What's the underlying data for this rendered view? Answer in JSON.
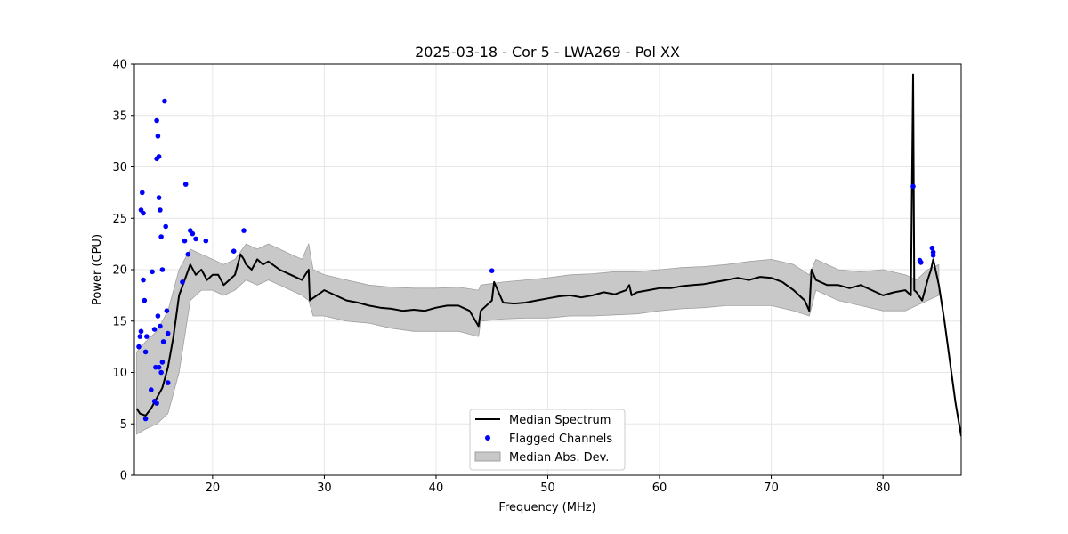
{
  "chart_data": {
    "type": "line",
    "title": "2025-03-18 - Cor 5 - LWA269 - Pol XX",
    "xlabel": "Frequency (MHz)",
    "ylabel": "Power (CPU)",
    "xlim": [
      13,
      87
    ],
    "ylim": [
      0,
      40
    ],
    "xticks": [
      20,
      30,
      40,
      50,
      60,
      70,
      80
    ],
    "yticks": [
      0,
      5,
      10,
      15,
      20,
      25,
      30,
      35,
      40
    ],
    "grid": true,
    "legend": {
      "placement": "lower-center",
      "entries": [
        "Median Spectrum",
        "Flagged Channels",
        "Median Abs. Dev."
      ]
    },
    "colors": {
      "median": "#000000",
      "flagged": "#0000ff",
      "mad_fill": "#c8c8c8",
      "mad_edge": "#a0a0a0"
    },
    "series": [
      {
        "name": "Median Spectrum",
        "x": [
          13.2,
          13.5,
          14.0,
          14.5,
          15.0,
          15.5,
          16.0,
          16.5,
          17.0,
          17.5,
          18.0,
          18.5,
          19.0,
          19.5,
          20.0,
          20.5,
          21.0,
          21.5,
          22.0,
          22.5,
          22.8,
          23.0,
          23.5,
          24.0,
          24.5,
          25.0,
          26.0,
          27.0,
          28.0,
          28.6,
          28.7,
          30.0,
          31.0,
          32.0,
          33.0,
          34.0,
          35.0,
          36.0,
          37.0,
          38.0,
          39.0,
          40.0,
          41.0,
          42.0,
          43.0,
          43.8,
          44.0,
          45.0,
          45.2,
          46.0,
          47.0,
          48.0,
          49.0,
          50.0,
          51.0,
          52.0,
          53.0,
          54.0,
          55.0,
          56.0,
          57.0,
          57.3,
          57.5,
          58.0,
          59.0,
          60.0,
          61.0,
          62.0,
          63.0,
          64.0,
          65.0,
          66.0,
          67.0,
          68.0,
          69.0,
          70.0,
          71.0,
          72.0,
          73.0,
          73.4,
          73.6,
          74.0,
          75.0,
          76.0,
          77.0,
          78.0,
          79.0,
          80.0,
          81.0,
          82.0,
          82.5,
          82.7,
          82.8,
          83.0,
          83.5,
          84.0,
          84.3,
          84.5,
          85.0,
          85.5,
          86.0,
          86.5,
          87.0
        ],
        "values": [
          6.5,
          6.0,
          5.8,
          6.5,
          7.5,
          8.5,
          10.5,
          13.5,
          17.5,
          19.0,
          20.5,
          19.5,
          20.0,
          19.0,
          19.5,
          19.5,
          18.5,
          19.0,
          19.5,
          21.5,
          21.0,
          20.5,
          20.0,
          21.0,
          20.5,
          20.8,
          20.0,
          19.5,
          19.0,
          20.0,
          17.0,
          18.0,
          17.5,
          17.0,
          16.8,
          16.5,
          16.3,
          16.2,
          16.0,
          16.1,
          16.0,
          16.3,
          16.5,
          16.5,
          16.0,
          14.5,
          16.0,
          17.0,
          18.8,
          16.8,
          16.7,
          16.8,
          17.0,
          17.2,
          17.4,
          17.5,
          17.3,
          17.5,
          17.8,
          17.6,
          18.0,
          18.5,
          17.5,
          17.8,
          18.0,
          18.2,
          18.2,
          18.4,
          18.5,
          18.6,
          18.8,
          19.0,
          19.2,
          19.0,
          19.3,
          19.2,
          18.8,
          18.0,
          17.0,
          16.0,
          20.0,
          19.0,
          18.5,
          18.5,
          18.2,
          18.5,
          18.0,
          17.5,
          17.8,
          18.0,
          17.5,
          39.0,
          18.0,
          17.8,
          17.0,
          19.0,
          20.0,
          21.0,
          18.5,
          15.0,
          11.0,
          7.0,
          3.8
        ]
      },
      {
        "name": "Median Abs. Dev.",
        "x": [
          13.2,
          14.0,
          15.0,
          16.0,
          17.0,
          18.0,
          19.0,
          20.0,
          21.0,
          22.0,
          23.0,
          24.0,
          25.0,
          26.0,
          27.0,
          28.0,
          28.6,
          29.0,
          30.0,
          32.0,
          34.0,
          36.0,
          38.0,
          40.0,
          42.0,
          43.8,
          44.0,
          46.0,
          48.0,
          50.0,
          52.0,
          54.0,
          56.0,
          58.0,
          60.0,
          62.0,
          64.0,
          66.0,
          68.0,
          70.0,
          72.0,
          73.4,
          74.0,
          76.0,
          78.0,
          80.0,
          82.0,
          83.0,
          84.0,
          85.0
        ],
        "upper": [
          12.0,
          13.0,
          14.0,
          16.0,
          20.0,
          22.0,
          21.5,
          21.0,
          20.5,
          21.0,
          22.5,
          22.0,
          22.5,
          22.0,
          21.5,
          21.0,
          22.5,
          20.0,
          19.5,
          19.0,
          18.5,
          18.3,
          18.2,
          18.2,
          18.3,
          18.0,
          18.5,
          18.8,
          19.0,
          19.2,
          19.5,
          19.6,
          19.8,
          19.8,
          20.0,
          20.2,
          20.3,
          20.5,
          20.8,
          21.0,
          20.5,
          19.5,
          21.0,
          20.0,
          19.8,
          20.0,
          19.5,
          19.0,
          20.0,
          20.5
        ],
        "lower": [
          4.0,
          4.5,
          5.0,
          6.0,
          10.0,
          17.0,
          18.0,
          18.0,
          17.5,
          18.0,
          19.0,
          18.5,
          19.0,
          18.5,
          18.0,
          17.5,
          17.0,
          15.5,
          15.5,
          15.0,
          14.8,
          14.3,
          14.0,
          14.0,
          14.0,
          13.5,
          15.0,
          15.2,
          15.3,
          15.3,
          15.5,
          15.5,
          15.6,
          15.7,
          16.0,
          16.2,
          16.3,
          16.5,
          16.5,
          16.5,
          16.0,
          15.5,
          18.0,
          17.0,
          16.5,
          16.0,
          16.0,
          16.5,
          17.0,
          17.5
        ]
      },
      {
        "name": "Flagged Channels",
        "x": [
          13.4,
          13.5,
          13.6,
          13.6,
          13.7,
          13.8,
          13.8,
          13.9,
          14.0,
          14.1,
          14.0,
          14.5,
          14.6,
          14.8,
          14.9,
          15.0,
          15.0,
          15.1,
          15.2,
          15.2,
          15.3,
          15.4,
          15.5,
          15.6,
          15.7,
          15.8,
          15.9,
          16.0,
          16.0,
          15.1,
          15.3,
          15.5,
          15.2,
          15.4,
          14.8,
          15.0,
          17.3,
          17.5,
          17.6,
          17.8,
          18.0,
          18.2,
          18.5,
          19.4,
          21.9,
          22.8,
          45.0,
          82.7,
          83.3,
          83.4,
          84.4,
          84.5,
          84.5
        ],
        "values": [
          12.5,
          13.5,
          14.0,
          25.8,
          27.5,
          25.5,
          19.0,
          17.0,
          12.0,
          13.5,
          5.5,
          8.3,
          19.8,
          7.2,
          10.5,
          34.5,
          30.8,
          33.0,
          31.0,
          27.0,
          25.8,
          23.2,
          20.0,
          13.0,
          36.4,
          24.2,
          16.0,
          13.8,
          9.0,
          15.5,
          14.5,
          11.0,
          10.5,
          10.0,
          14.2,
          7.0,
          18.8,
          22.8,
          28.3,
          21.5,
          23.8,
          23.5,
          23.0,
          22.8,
          21.8,
          23.8,
          19.9,
          28.1,
          20.9,
          20.7,
          22.1,
          21.7,
          21.4
        ]
      }
    ]
  }
}
